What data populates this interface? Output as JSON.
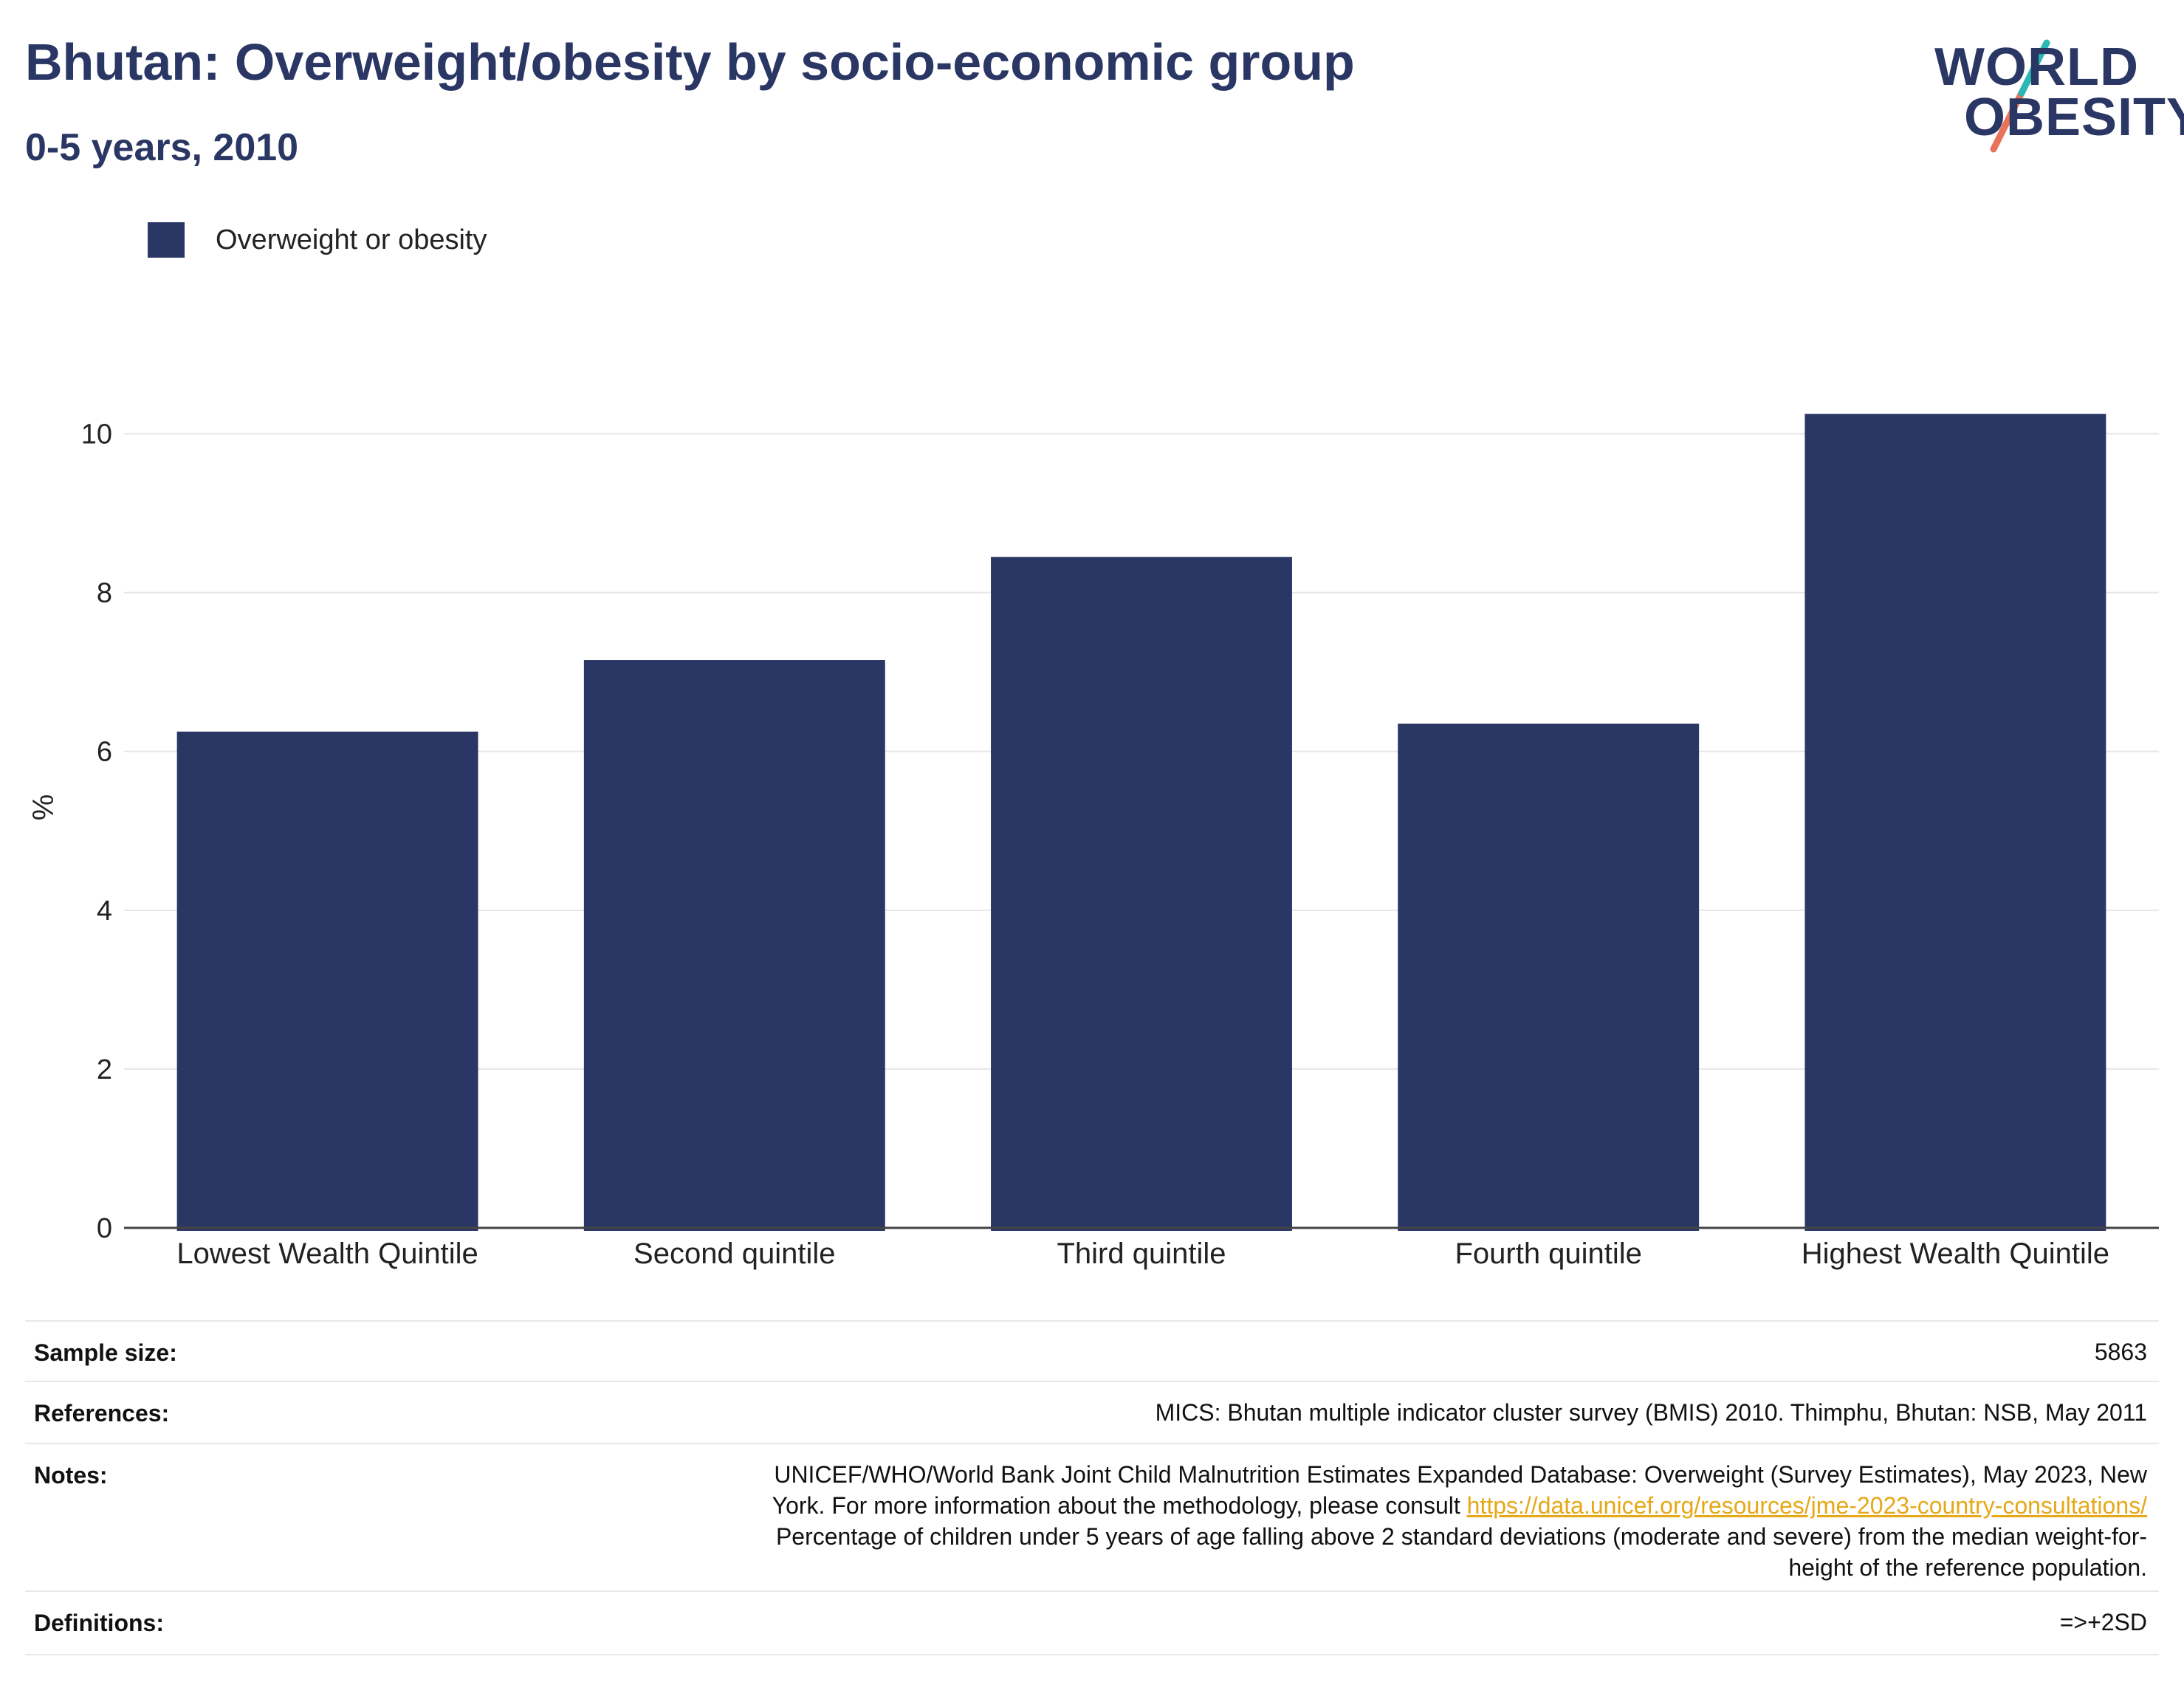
{
  "header": {
    "title": "Bhutan: Overweight/obesity by socio-economic group",
    "subtitle": "0-5 years, 2010"
  },
  "logo": {
    "line1": "WORLD",
    "line2": "OBESITY"
  },
  "colors": {
    "bar": "#2a3663",
    "accent_teal": "#2bb7b3",
    "accent_coral": "#e8735a",
    "grid": "#e6e6e6",
    "link": "#e6a817"
  },
  "chart_data": {
    "type": "bar",
    "categories": [
      "Lowest Wealth Quintile",
      "Second quintile",
      "Third quintile",
      "Fourth quintile",
      "Highest Wealth Quintile"
    ],
    "series": [
      {
        "name": "Overweight or obesity",
        "values": [
          6.25,
          7.15,
          8.45,
          6.35,
          10.25
        ]
      }
    ],
    "ylabel": "%",
    "ylim": [
      0,
      11
    ],
    "yticks": [
      0,
      2,
      4,
      6,
      8,
      10
    ],
    "grid": true,
    "legend": "top-left"
  },
  "info": {
    "sample_size_label": "Sample size:",
    "sample_size_value": "5863",
    "references_label": "References:",
    "references_value": "MICS: Bhutan multiple indicator cluster survey (BMIS) 2010. Thimphu, Bhutan: NSB, May 2011",
    "notes_label": "Notes:",
    "notes_line1": "UNICEF/WHO/World Bank Joint Child Malnutrition Estimates Expanded Database: Overweight (Survey Estimates), May 2023, New",
    "notes_line2_prefix": "York. For more information about the methodology, please consult ",
    "notes_link": "https://data.unicef.org/resources/jme-2023-country-consultations/",
    "notes_line3": "Percentage of children under 5 years of age falling above 2 standard deviations (moderate and severe) from the median weight-for-",
    "notes_line4": "height of the reference population.",
    "definitions_label": "Definitions:",
    "definitions_value": "=>+2SD"
  }
}
